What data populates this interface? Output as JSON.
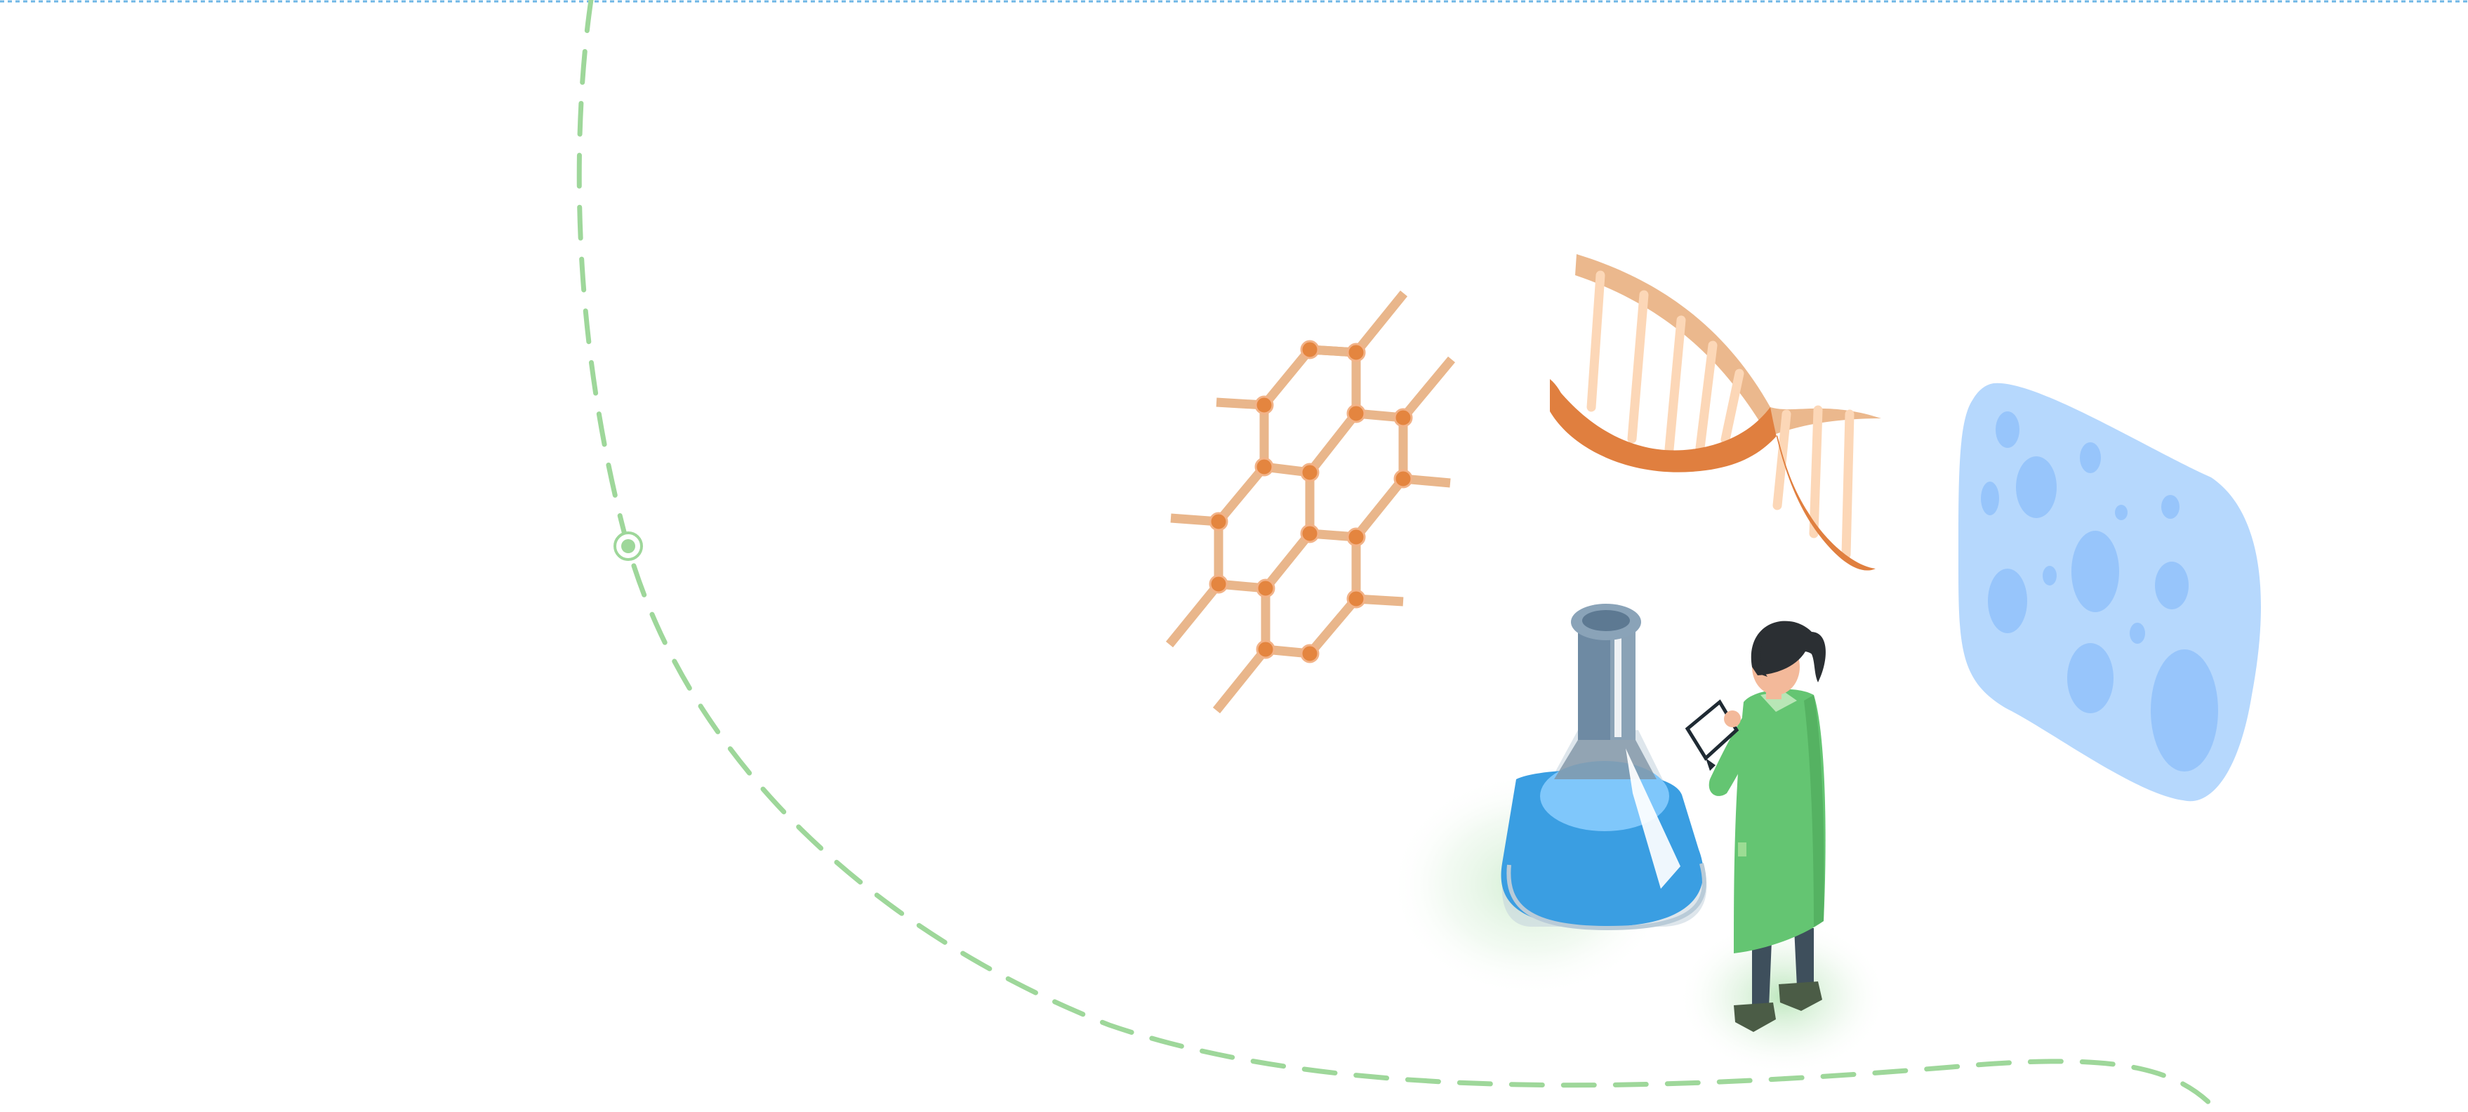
{
  "illustration": {
    "colors": {
      "background": "#ffffff",
      "top_border": "#6fb7e6",
      "path_green": "#9ed79a",
      "molecule_orange": "#e9b68b",
      "molecule_node": "#e4853f",
      "dna_light": "#ebb88d",
      "dna_dark": "#e07f3f",
      "cell_blue": "#b6d8fd",
      "cell_spot": "#97c5fb",
      "flask_liquid": "#3a9ee2",
      "flask_neck": "#6e8aa3",
      "coat_green": "#64c572"
    },
    "icons": [
      "molecule-lattice-icon",
      "dna-helix-icon",
      "cell-icon",
      "conical-flask-icon",
      "scientist-figure-icon",
      "path-marker-icon"
    ]
  }
}
